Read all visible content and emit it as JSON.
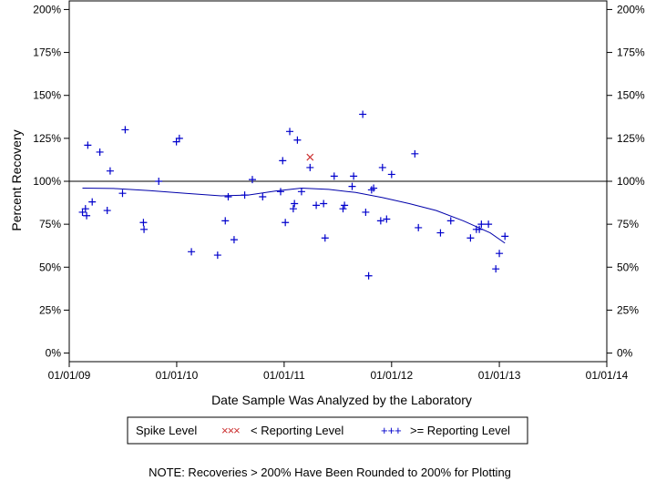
{
  "chart_data": {
    "type": "scatter",
    "xlabel": "Date Sample Was Analyzed by the Laboratory",
    "ylabel": "Percent Recovery",
    "xlim": [
      "2009-01-01",
      "2014-01-01"
    ],
    "ylim": [
      -5,
      205
    ],
    "x_ticks": [
      "2009-01-01",
      "2010-01-01",
      "2011-01-01",
      "2012-01-01",
      "2013-01-01",
      "2014-01-01"
    ],
    "x_tick_labels": [
      "01/01/09",
      "01/01/10",
      "01/01/11",
      "01/01/12",
      "01/01/13",
      "01/01/14"
    ],
    "y_ticks": [
      0,
      25,
      50,
      75,
      100,
      125,
      150,
      175,
      200
    ],
    "y_tick_labels": [
      "0%",
      "25%",
      "50%",
      "75%",
      "100%",
      "125%",
      "150%",
      "175%",
      "200%"
    ],
    "reference_line": 100,
    "legend": {
      "title": "Spike Level",
      "entries": [
        {
          "label": "< Reporting Level",
          "marker": "×",
          "color": "#cc3333"
        },
        {
          "label": ">= Reporting Level",
          "marker": "+",
          "color": "#0000cc"
        }
      ]
    },
    "note": "NOTE: Recoveries > 200% Have Been Rounded to 200% for Plotting",
    "series": [
      {
        "name": ">= Reporting Level",
        "marker": "+",
        "color": "#0000cc",
        "points": [
          {
            "x": "2009-02-15",
            "y": 82
          },
          {
            "x": "2009-02-25",
            "y": 84
          },
          {
            "x": "2009-03-01",
            "y": 80
          },
          {
            "x": "2009-03-05",
            "y": 121
          },
          {
            "x": "2009-03-20",
            "y": 88
          },
          {
            "x": "2009-04-15",
            "y": 117
          },
          {
            "x": "2009-05-10",
            "y": 83
          },
          {
            "x": "2009-05-20",
            "y": 106
          },
          {
            "x": "2009-07-01",
            "y": 93
          },
          {
            "x": "2009-07-10",
            "y": 130
          },
          {
            "x": "2009-09-10",
            "y": 76
          },
          {
            "x": "2009-09-12",
            "y": 72
          },
          {
            "x": "2009-11-01",
            "y": 100
          },
          {
            "x": "2009-12-31",
            "y": 123
          },
          {
            "x": "2010-01-10",
            "y": 125
          },
          {
            "x": "2010-02-20",
            "y": 59
          },
          {
            "x": "2010-05-20",
            "y": 57
          },
          {
            "x": "2010-06-15",
            "y": 77
          },
          {
            "x": "2010-06-25",
            "y": 91
          },
          {
            "x": "2010-07-15",
            "y": 66
          },
          {
            "x": "2010-08-20",
            "y": 92
          },
          {
            "x": "2010-09-15",
            "y": 101
          },
          {
            "x": "2010-10-20",
            "y": 91
          },
          {
            "x": "2010-12-20",
            "y": 94
          },
          {
            "x": "2010-12-27",
            "y": 112
          },
          {
            "x": "2011-01-05",
            "y": 76
          },
          {
            "x": "2011-01-20",
            "y": 129
          },
          {
            "x": "2011-02-01",
            "y": 84
          },
          {
            "x": "2011-02-05",
            "y": 87
          },
          {
            "x": "2011-02-15",
            "y": 124
          },
          {
            "x": "2011-03-01",
            "y": 94
          },
          {
            "x": "2011-03-30",
            "y": 108
          },
          {
            "x": "2011-04-20",
            "y": 86
          },
          {
            "x": "2011-05-15",
            "y": 87
          },
          {
            "x": "2011-05-20",
            "y": 67
          },
          {
            "x": "2011-06-20",
            "y": 103
          },
          {
            "x": "2011-07-20",
            "y": 84
          },
          {
            "x": "2011-07-25",
            "y": 86
          },
          {
            "x": "2011-08-20",
            "y": 97
          },
          {
            "x": "2011-08-25",
            "y": 103
          },
          {
            "x": "2011-09-25",
            "y": 139
          },
          {
            "x": "2011-10-05",
            "y": 82
          },
          {
            "x": "2011-10-15",
            "y": 45
          },
          {
            "x": "2011-10-25",
            "y": 95
          },
          {
            "x": "2011-11-01",
            "y": 96
          },
          {
            "x": "2011-11-25",
            "y": 77
          },
          {
            "x": "2011-12-01",
            "y": 108
          },
          {
            "x": "2011-12-15",
            "y": 78
          },
          {
            "x": "2012-01-01",
            "y": 104
          },
          {
            "x": "2012-03-20",
            "y": 116
          },
          {
            "x": "2012-04-01",
            "y": 73
          },
          {
            "x": "2012-06-15",
            "y": 70
          },
          {
            "x": "2012-07-20",
            "y": 77
          },
          {
            "x": "2012-09-25",
            "y": 67
          },
          {
            "x": "2012-10-15",
            "y": 72
          },
          {
            "x": "2012-10-25",
            "y": 72
          },
          {
            "x": "2012-11-01",
            "y": 75
          },
          {
            "x": "2012-11-25",
            "y": 75
          },
          {
            "x": "2012-12-20",
            "y": 49
          },
          {
            "x": "2013-01-01",
            "y": 58
          },
          {
            "x": "2013-01-20",
            "y": 68
          }
        ]
      },
      {
        "name": "< Reporting Level",
        "marker": "×",
        "color": "#cc3333",
        "points": [
          {
            "x": "2011-03-30",
            "y": 114
          }
        ]
      }
    ],
    "trend_line": {
      "color": "#0000aa",
      "points": [
        {
          "x": "2009-02-15",
          "y": 96
        },
        {
          "x": "2009-06-01",
          "y": 95.8
        },
        {
          "x": "2009-10-01",
          "y": 94.6
        },
        {
          "x": "2010-02-01",
          "y": 93
        },
        {
          "x": "2010-06-01",
          "y": 91.5
        },
        {
          "x": "2010-09-01",
          "y": 92
        },
        {
          "x": "2010-12-01",
          "y": 94.3
        },
        {
          "x": "2011-03-01",
          "y": 96
        },
        {
          "x": "2011-06-01",
          "y": 95.3
        },
        {
          "x": "2011-09-01",
          "y": 93.5
        },
        {
          "x": "2011-12-01",
          "y": 90.5
        },
        {
          "x": "2012-03-01",
          "y": 87
        },
        {
          "x": "2012-06-01",
          "y": 83
        },
        {
          "x": "2012-09-01",
          "y": 77
        },
        {
          "x": "2012-12-01",
          "y": 70
        },
        {
          "x": "2013-01-20",
          "y": 64
        }
      ]
    }
  }
}
